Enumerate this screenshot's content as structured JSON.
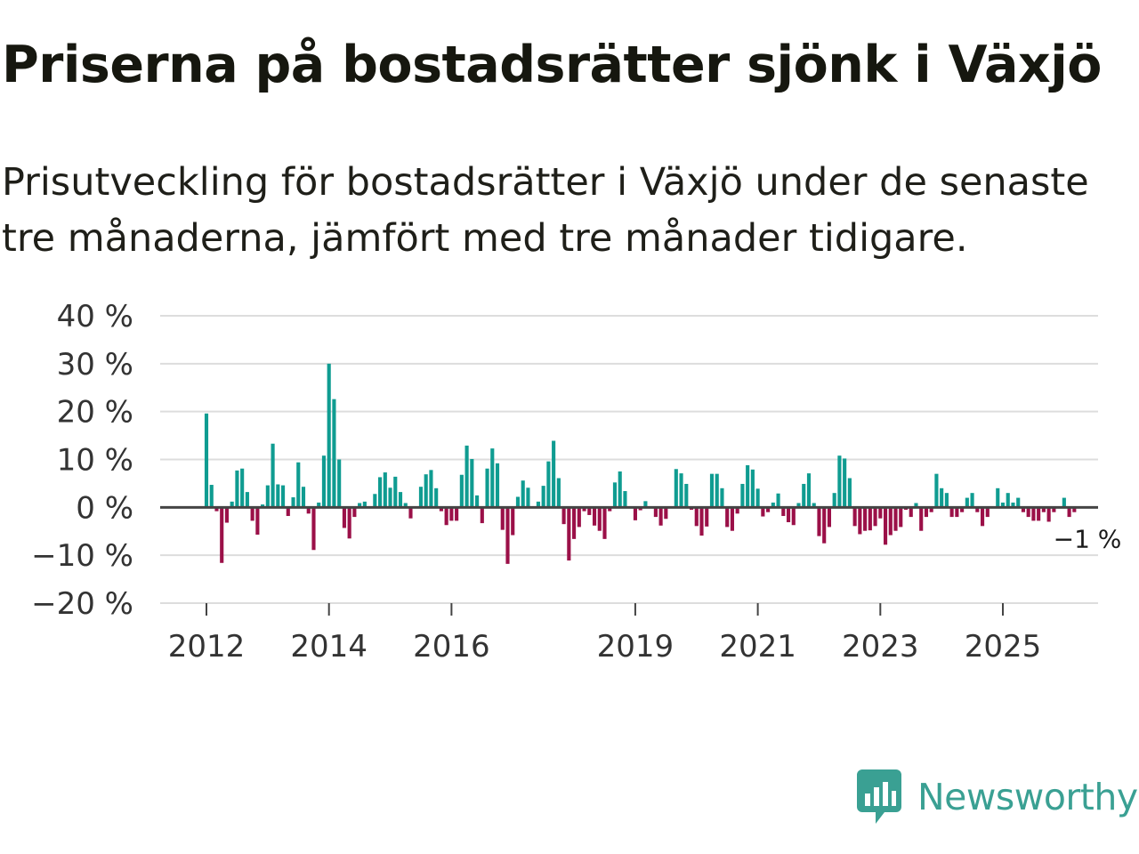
{
  "header": {
    "title": "Priserna på bostadsrätter sjönk i Växjö",
    "subtitle": "Prisutveckling för bostadsrätter i Växjö under de senaste tre månaderna, jämfört med tre månader tidigare."
  },
  "brand": {
    "name": "Newsworthy",
    "color": "#3aa093"
  },
  "colors": {
    "positive": "#0f9c91",
    "negative": "#9b1048",
    "grid": "#dddddd",
    "zero_line": "#444444"
  },
  "chart_data": {
    "type": "bar",
    "title": "Priserna på bostadsrätter sjönk i Växjö",
    "xlabel": "",
    "ylabel": "",
    "ylim": [
      -20,
      40
    ],
    "y_ticks": [
      40,
      30,
      20,
      10,
      0,
      -10,
      -20
    ],
    "y_tick_labels": [
      "40 %",
      "30 %",
      "20 %",
      "10 %",
      "0 %",
      "−10 %",
      "−20 %"
    ],
    "x_ticks": [
      2012,
      2014,
      2016,
      2019,
      2021,
      2023,
      2025
    ],
    "x_tick_labels": [
      "2012",
      "2014",
      "2016",
      "2019",
      "2021",
      "2023",
      "2025"
    ],
    "x_start": 2012.0,
    "x_step_years": 0.0833333,
    "values": [
      19.6,
      4.7,
      -0.8,
      -11.6,
      -3.2,
      1.2,
      7.7,
      8.1,
      3.2,
      -2.8,
      -5.7,
      0.6,
      4.6,
      13.3,
      4.8,
      4.6,
      -1.8,
      2.1,
      9.4,
      4.3,
      -1.3,
      -8.9,
      1.0,
      10.8,
      30.0,
      22.6,
      10.0,
      -4.3,
      -6.5,
      -2.0,
      0.9,
      1.2,
      0.1,
      2.8,
      6.3,
      7.3,
      4.1,
      6.4,
      3.2,
      0.9,
      -2.3,
      0.2,
      4.3,
      6.9,
      7.8,
      4.0,
      -0.8,
      -3.7,
      -2.8,
      -2.8,
      6.8,
      12.9,
      10.1,
      2.5,
      -3.3,
      8.1,
      12.3,
      9.2,
      -4.7,
      -11.8,
      -5.8,
      2.2,
      5.6,
      4.1,
      -0.2,
      1.2,
      4.5,
      9.6,
      13.9,
      6.1,
      -3.5,
      -11.1,
      -6.6,
      -4.1,
      -0.8,
      -1.6,
      -3.8,
      -4.9,
      -6.6,
      -0.8,
      5.2,
      7.5,
      3.4,
      0.0,
      -2.7,
      -0.6,
      1.3,
      -0.2,
      -2.0,
      -3.8,
      -2.4,
      0.2,
      8.0,
      7.1,
      4.9,
      -0.5,
      -3.9,
      -5.9,
      -4.0,
      7.0,
      7.0,
      4.0,
      -4.1,
      -4.9,
      -1.3,
      4.9,
      8.8,
      7.9,
      3.9,
      -1.9,
      -1.0,
      1.0,
      2.9,
      -1.8,
      -3.1,
      -3.7,
      0.9,
      4.9,
      7.1,
      0.9,
      -6.0,
      -7.5,
      -4.1,
      3.0,
      10.8,
      10.2,
      6.1,
      -3.9,
      -5.6,
      -4.9,
      -4.8,
      -3.9,
      -2.3,
      -7.8,
      -5.8,
      -4.9,
      -4.1,
      -0.5,
      -2.0,
      0.9,
      -4.9,
      -2.0,
      -1.0,
      7.0,
      4.0,
      3.0,
      -2.0,
      -2.0,
      -1.0,
      2.0,
      3.0,
      -1.0,
      -3.9,
      -2.0,
      0.0,
      4.0,
      1.0,
      3.0,
      1.0,
      2.0,
      -1.0,
      -2.0,
      -2.8,
      -2.8,
      -1.0,
      -3.0,
      -1.0,
      0.0,
      2.0,
      -2.0,
      -1.0
    ],
    "end_label": "−1 %"
  }
}
